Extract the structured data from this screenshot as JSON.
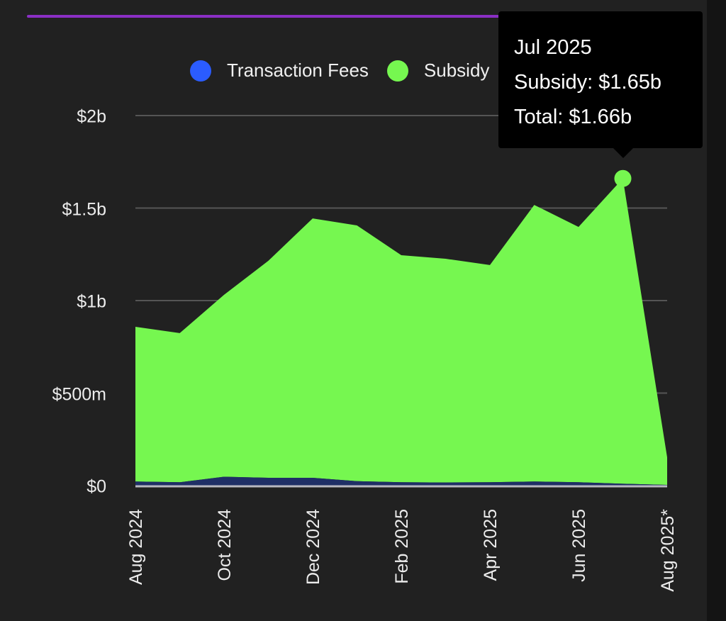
{
  "colors": {
    "background": "#212121",
    "right_strip": "#141414",
    "accent_line": "#8a2fc4",
    "subsidy": "#76f750",
    "transaction_fees_area": "#1f2f66",
    "transaction_fees_legend": "#2b5cff",
    "grid": "#555555",
    "baseline": "#b8b8c0",
    "tooltip_bg": "#000000"
  },
  "legend": {
    "items": [
      {
        "label": "Transaction Fees",
        "color": "#2b5cff"
      },
      {
        "label": "Subsidy",
        "color": "#76f750"
      }
    ]
  },
  "tooltip": {
    "title": "Jul 2025",
    "line1": "Subsidy: $1.65b",
    "line2": "Total: $1.66b"
  },
  "chart_data": {
    "type": "area",
    "stacked": true,
    "title": "",
    "xlabel": "",
    "ylabel": "",
    "ylim": [
      0,
      2000000000
    ],
    "y_ticks": [
      {
        "value": 0,
        "label": "$0"
      },
      {
        "value": 500000000,
        "label": "$500m"
      },
      {
        "value": 1000000000,
        "label": "$1b"
      },
      {
        "value": 1500000000,
        "label": "$1.5b"
      },
      {
        "value": 2000000000,
        "label": "$2b"
      }
    ],
    "grid": true,
    "legend_position": "top",
    "categories": [
      "Aug 2024",
      "Sep 2024",
      "Oct 2024",
      "Nov 2024",
      "Dec 2024",
      "Jan 2025",
      "Feb 2025",
      "Mar 2025",
      "Apr 2025",
      "May 2025",
      "Jun 2025",
      "Jul 2025",
      "Aug 2025*"
    ],
    "x_tick_labels": [
      "Aug 2024",
      "Oct 2024",
      "Dec 2024",
      "Feb 2025",
      "Apr 2025",
      "Jun 2025",
      "Aug 2025*"
    ],
    "x_tick_indices": [
      0,
      2,
      4,
      6,
      8,
      10,
      12
    ],
    "series": [
      {
        "name": "Transaction Fees",
        "values": [
          22000000,
          18000000,
          48000000,
          42000000,
          42000000,
          24000000,
          18000000,
          17000000,
          18000000,
          22000000,
          18000000,
          10000000,
          4000000
        ]
      },
      {
        "name": "Subsidy",
        "values": [
          836000000,
          806000000,
          983000000,
          1173000000,
          1402000000,
          1382000000,
          1227000000,
          1209000000,
          1174000000,
          1495000000,
          1380000000,
          1650000000,
          149000000
        ]
      }
    ],
    "totals": [
      858000000,
      824000000,
      1031000000,
      1215000000,
      1444000000,
      1406000000,
      1245000000,
      1226000000,
      1192000000,
      1517000000,
      1398000000,
      1660000000,
      153000000
    ],
    "highlighted_point": {
      "category": "Jul 2025",
      "subsidy": 1650000000,
      "total": 1660000000
    }
  }
}
